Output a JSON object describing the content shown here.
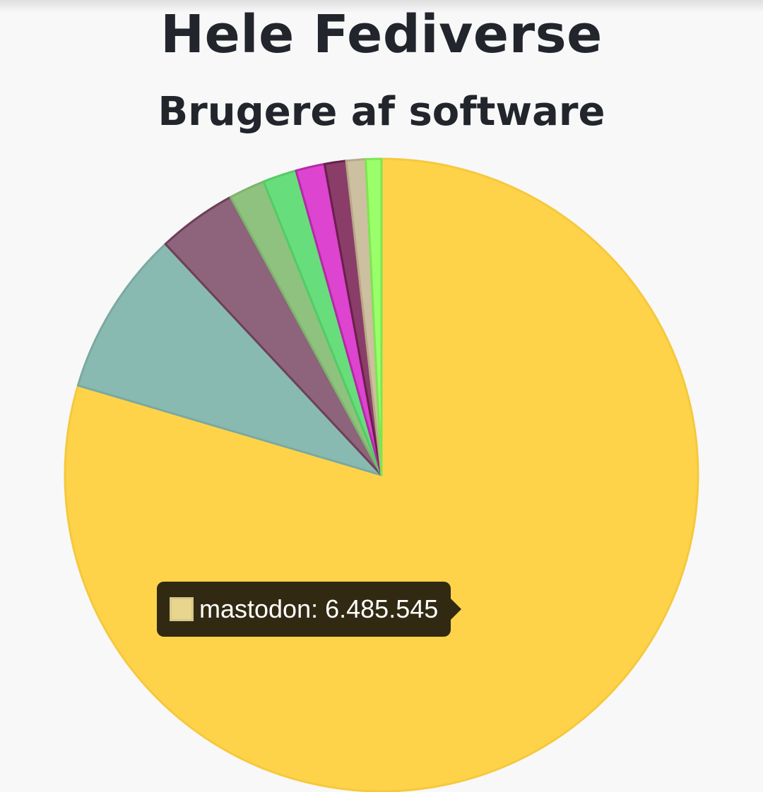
{
  "header": {
    "title": "Hele Fediverse"
  },
  "chart_data": {
    "type": "pie",
    "title": "Brugere af software",
    "start_angle_deg": 0,
    "direction": "clockwise",
    "slices": [
      {
        "name": "mastodon",
        "value": 6485545,
        "color": "#fed34a",
        "border": "#f5c93c"
      },
      {
        "value": 690000,
        "color": "#89bab2",
        "border": "#7aa9a1"
      },
      {
        "value": 330000,
        "color": "#8d647b",
        "border": "#6e3f59"
      },
      {
        "value": 150000,
        "color": "#8fc27f",
        "border": "#7db46d"
      },
      {
        "value": 140000,
        "color": "#68dd7c",
        "border": "#52cc66"
      },
      {
        "value": 120000,
        "color": "#dd44cf",
        "border": "#b42aa6"
      },
      {
        "value": 90000,
        "color": "#8b3d69",
        "border": "#6a1f4b"
      },
      {
        "value": 80000,
        "color": "#cdc0a0",
        "border": "#b6a986"
      },
      {
        "value": 65000,
        "color": "#9aff6b",
        "border": "#7fe452"
      }
    ]
  },
  "tooltip": {
    "label": "mastodon: 6.485.545",
    "swatch_color": "#e8d58e"
  }
}
